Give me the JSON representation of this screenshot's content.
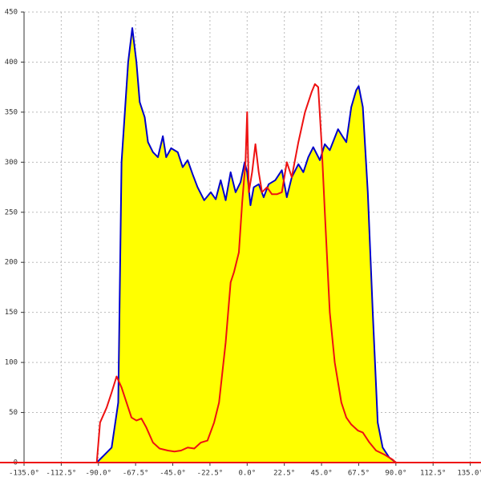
{
  "chart_data": {
    "type": "line",
    "xlim": [
      -135,
      141.5
    ],
    "ylim": [
      0,
      450
    ],
    "xticks": [
      {
        "value": -135,
        "label": "-135.0°"
      },
      {
        "value": -112.5,
        "label": "-112.5°"
      },
      {
        "value": -90,
        "label": "-90.0°"
      },
      {
        "value": -67.5,
        "label": "-67.5°"
      },
      {
        "value": -45,
        "label": "-45.0°"
      },
      {
        "value": -22.5,
        "label": "-22.5°"
      },
      {
        "value": 0,
        "label": "0.0°"
      },
      {
        "value": 22.5,
        "label": "22.5°"
      },
      {
        "value": 45,
        "label": "45.0°"
      },
      {
        "value": 67.5,
        "label": "67.5°"
      },
      {
        "value": 90,
        "label": "90.0°"
      },
      {
        "value": 112.5,
        "label": "112.5°"
      },
      {
        "value": 135,
        "label": "135.0°"
      }
    ],
    "yticks": [
      0,
      50,
      100,
      150,
      200,
      250,
      300,
      350,
      400,
      450
    ],
    "grid": true,
    "series": [
      {
        "color": "#0000cc",
        "fill": "#ffff00",
        "x": [
          -91,
          -88,
          -82,
          -78,
          -76,
          -72,
          -69.5,
          -67,
          -65,
          -62,
          -60,
          -57,
          -54,
          -51,
          -49,
          -46,
          -42,
          -39,
          -36,
          -33,
          -30,
          -26,
          -22,
          -19,
          -16,
          -13,
          -10,
          -7,
          -4,
          -1.5,
          0,
          2,
          4,
          7,
          10,
          13,
          17,
          21,
          24,
          27,
          31,
          34,
          37,
          40,
          44,
          47,
          50,
          55,
          58,
          60,
          63,
          66,
          67.5,
          70,
          73,
          76,
          79,
          82,
          86,
          90
        ],
        "values": [
          0,
          5,
          15,
          60,
          300,
          400,
          434,
          400,
          360,
          345,
          320,
          310,
          305,
          326,
          305,
          314,
          310,
          295,
          302,
          288,
          275,
          262,
          270,
          263,
          282,
          262,
          290,
          270,
          280,
          300,
          290,
          257,
          275,
          278,
          265,
          278,
          282,
          292,
          265,
          285,
          298,
          290,
          305,
          315,
          302,
          318,
          312,
          333,
          325,
          320,
          355,
          372,
          376,
          355,
          270,
          150,
          40,
          15,
          5,
          0
        ]
      },
      {
        "color": "#ee1111",
        "x": [
          -91,
          -89,
          -85,
          -82,
          -79,
          -76,
          -73,
          -70,
          -67,
          -64,
          -61,
          -57,
          -53,
          -48,
          -44,
          -40,
          -36,
          -32,
          -28,
          -24,
          -20,
          -17,
          -13,
          -10,
          -8,
          -5,
          -3,
          -1,
          0,
          1,
          3,
          5,
          7,
          9,
          12,
          15,
          18,
          21,
          24,
          27,
          31,
          35,
          39,
          41,
          43,
          45,
          47,
          50,
          53,
          57,
          60,
          63,
          67,
          70,
          74,
          78,
          83,
          88,
          90
        ],
        "values": [
          0,
          40,
          55,
          70,
          86,
          75,
          60,
          45,
          42,
          44,
          35,
          20,
          14,
          12,
          11,
          12,
          15,
          14,
          20,
          22,
          40,
          60,
          120,
          180,
          190,
          210,
          260,
          300,
          350,
          270,
          290,
          318,
          290,
          270,
          275,
          268,
          268,
          270,
          300,
          285,
          320,
          350,
          370,
          378,
          375,
          320,
          250,
          150,
          100,
          60,
          45,
          38,
          32,
          30,
          20,
          12,
          8,
          3,
          0
        ]
      }
    ]
  }
}
